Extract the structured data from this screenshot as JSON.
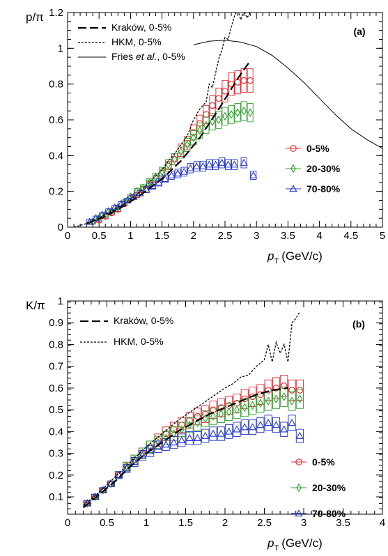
{
  "chart_data": [
    {
      "type": "scatter",
      "panel": "(a)",
      "ylabel": "p/π",
      "xlabel_main": "p",
      "xlabel_sub": "T",
      "xlabel_unit": "(GeV/c)",
      "xlim": [
        0,
        5
      ],
      "ylim": [
        0,
        1.2
      ],
      "xticks": [
        0,
        0.5,
        1,
        1.5,
        2,
        2.5,
        3,
        3.5,
        4,
        4.5,
        5
      ],
      "xtick_labels": [
        "0",
        "0.5",
        "1",
        "1.5",
        "2",
        "2.5",
        "3",
        "3.5",
        "4",
        "4.5",
        "5"
      ],
      "yticks": [
        0,
        0.2,
        0.4,
        0.6,
        0.8,
        1,
        1.2
      ],
      "ytick_labels": [
        "0",
        "0.2",
        "0.4",
        "0.6",
        "0.8",
        "1",
        "1.2"
      ],
      "model_legend": [
        {
          "name": "Kraków, 0-5%",
          "style": "longdash"
        },
        {
          "name": "HKM, 0-5%",
          "style": "dotted"
        },
        {
          "name_prefix": "Fries ",
          "name_italic": "et al.",
          "name_suffix": ", 0-5%",
          "style": "solid"
        }
      ],
      "models": [
        {
          "name": "Kraków, 0-5%",
          "style": "longdash",
          "x": [
            0.3,
            0.6,
            0.9,
            1.2,
            1.5,
            1.8,
            2.1,
            2.4,
            2.7,
            2.9
          ],
          "y": [
            0.02,
            0.06,
            0.12,
            0.19,
            0.27,
            0.37,
            0.5,
            0.66,
            0.83,
            0.93
          ]
        },
        {
          "name": "HKM, 0-5%",
          "style": "dotted",
          "x": [
            0.1,
            0.3,
            0.5,
            0.7,
            0.9,
            1.1,
            1.3,
            1.5,
            1.6,
            1.7,
            1.8,
            1.9,
            2.0,
            2.1,
            2.2,
            2.25,
            2.3,
            2.35,
            2.4,
            2.45,
            2.5,
            2.55,
            2.6,
            2.65,
            2.7,
            2.75,
            2.8,
            2.85,
            2.9
          ],
          "y": [
            0.0,
            0.02,
            0.05,
            0.09,
            0.13,
            0.18,
            0.25,
            0.32,
            0.37,
            0.41,
            0.46,
            0.51,
            0.6,
            0.66,
            0.7,
            0.8,
            0.78,
            0.86,
            0.94,
            0.99,
            1.06,
            1.05,
            1.12,
            1.18,
            1.22,
            1.16,
            1.21,
            1.17,
            1.2
          ]
        },
        {
          "name": "Fries et al., 0-5%",
          "style": "solid",
          "x": [
            2.0,
            2.25,
            2.5,
            2.75,
            3.0,
            3.25,
            3.5,
            3.75,
            4.0,
            4.25,
            4.5,
            4.75,
            5.0
          ],
          "y": [
            1.02,
            1.04,
            1.045,
            1.035,
            1.01,
            0.96,
            0.89,
            0.81,
            0.72,
            0.63,
            0.55,
            0.49,
            0.44
          ]
        }
      ],
      "series_legend": [
        "0-5%",
        "20-30%",
        "70-80%"
      ],
      "series": [
        {
          "name": "0-5%",
          "marker": "circle",
          "color": "#e8222a",
          "x": [
            0.4,
            0.5,
            0.6,
            0.7,
            0.8,
            0.9,
            1.0,
            1.1,
            1.2,
            1.3,
            1.4,
            1.5,
            1.6,
            1.7,
            1.8,
            1.9,
            2.0,
            2.1,
            2.2,
            2.3,
            2.4,
            2.5,
            2.6,
            2.7,
            2.8,
            2.9
          ],
          "y": [
            0.03,
            0.04,
            0.06,
            0.08,
            0.1,
            0.13,
            0.16,
            0.18,
            0.21,
            0.24,
            0.27,
            0.3,
            0.34,
            0.38,
            0.43,
            0.47,
            0.53,
            0.58,
            0.63,
            0.68,
            0.72,
            0.76,
            0.8,
            0.81,
            0.82,
            0.82
          ]
        },
        {
          "name": "20-30%",
          "marker": "diamond",
          "color": "#2ca02c",
          "x": [
            0.4,
            0.5,
            0.6,
            0.7,
            0.8,
            0.9,
            1.0,
            1.1,
            1.2,
            1.3,
            1.4,
            1.5,
            1.6,
            1.7,
            1.8,
            1.9,
            2.0,
            2.1,
            2.2,
            2.3,
            2.4,
            2.5,
            2.6,
            2.7,
            2.8,
            2.9
          ],
          "y": [
            0.03,
            0.05,
            0.07,
            0.09,
            0.11,
            0.14,
            0.17,
            0.2,
            0.22,
            0.25,
            0.28,
            0.31,
            0.35,
            0.38,
            0.42,
            0.46,
            0.5,
            0.54,
            0.57,
            0.59,
            0.6,
            0.62,
            0.63,
            0.64,
            0.65,
            0.64
          ]
        },
        {
          "name": "70-80%",
          "marker": "triangle",
          "color": "#2233cc",
          "x": [
            0.35,
            0.45,
            0.55,
            0.65,
            0.75,
            0.85,
            0.95,
            1.05,
            1.15,
            1.25,
            1.35,
            1.45,
            1.55,
            1.65,
            1.75,
            1.85,
            1.95,
            2.05,
            2.15,
            2.25,
            2.35,
            2.45,
            2.55,
            2.65,
            2.8,
            2.95
          ],
          "y": [
            0.03,
            0.05,
            0.07,
            0.09,
            0.11,
            0.13,
            0.15,
            0.17,
            0.19,
            0.21,
            0.23,
            0.25,
            0.27,
            0.29,
            0.3,
            0.31,
            0.33,
            0.34,
            0.34,
            0.35,
            0.35,
            0.36,
            0.35,
            0.35,
            0.36,
            0.29
          ]
        }
      ]
    },
    {
      "type": "scatter",
      "panel": "(b)",
      "ylabel": "K/π",
      "xlabel_main": "p",
      "xlabel_sub": "T",
      "xlabel_unit": "(GeV/c)",
      "xlim": [
        0,
        4
      ],
      "ylim": [
        0.02,
        1.0
      ],
      "xticks": [
        0,
        0.5,
        1,
        1.5,
        2,
        2.5,
        3,
        3.5,
        4
      ],
      "xtick_labels": [
        "0",
        "0.5",
        "1",
        "1.5",
        "2",
        "2.5",
        "3",
        "3.5",
        "4"
      ],
      "yticks": [
        0.1,
        0.2,
        0.3,
        0.4,
        0.5,
        0.6,
        0.7,
        0.8,
        0.9,
        1
      ],
      "ytick_labels": [
        "0.1",
        "0.2",
        "0.3",
        "0.4",
        "0.5",
        "0.6",
        "0.7",
        "0.8",
        "0.9",
        "1"
      ],
      "model_legend": [
        {
          "name": "Kraków, 0-5%",
          "style": "longdash"
        },
        {
          "name": "HKM, 0-5%",
          "style": "dotted"
        }
      ],
      "models": [
        {
          "name": "Kraków, 0-5%",
          "style": "longdash",
          "x": [
            0.2,
            0.4,
            0.6,
            0.8,
            1.0,
            1.2,
            1.4,
            1.6,
            1.8,
            2.0,
            2.2,
            2.4,
            2.6,
            2.8
          ],
          "y": [
            0.05,
            0.11,
            0.17,
            0.24,
            0.3,
            0.35,
            0.4,
            0.44,
            0.48,
            0.51,
            0.54,
            0.57,
            0.59,
            0.6
          ]
        },
        {
          "name": "HKM, 0-5%",
          "style": "dotted",
          "x": [
            0.2,
            0.4,
            0.6,
            0.8,
            1.0,
            1.2,
            1.4,
            1.6,
            1.8,
            2.0,
            2.1,
            2.2,
            2.3,
            2.4,
            2.5,
            2.55,
            2.6,
            2.65,
            2.7,
            2.75,
            2.8,
            2.85,
            2.9,
            2.95
          ],
          "y": [
            0.06,
            0.12,
            0.19,
            0.26,
            0.33,
            0.39,
            0.45,
            0.5,
            0.55,
            0.6,
            0.62,
            0.65,
            0.66,
            0.7,
            0.73,
            0.8,
            0.72,
            0.81,
            0.76,
            0.8,
            0.72,
            0.9,
            0.92,
            0.95
          ]
        }
      ],
      "series_legend": [
        "0-5%",
        "20-30%",
        "70-80%"
      ],
      "series": [
        {
          "name": "0-5%",
          "marker": "circle",
          "color": "#e8222a",
          "x": [
            0.25,
            0.35,
            0.45,
            0.55,
            0.65,
            0.75,
            0.85,
            0.95,
            1.05,
            1.15,
            1.25,
            1.35,
            1.45,
            1.55,
            1.65,
            1.75,
            1.85,
            1.95,
            2.05,
            2.15,
            2.25,
            2.35,
            2.45,
            2.55,
            2.65,
            2.75,
            2.85,
            2.95
          ],
          "y": [
            0.07,
            0.1,
            0.13,
            0.16,
            0.2,
            0.24,
            0.27,
            0.3,
            0.33,
            0.36,
            0.39,
            0.41,
            0.43,
            0.45,
            0.47,
            0.48,
            0.5,
            0.51,
            0.52,
            0.53,
            0.55,
            0.56,
            0.57,
            0.59,
            0.6,
            0.61,
            0.59,
            0.59
          ]
        },
        {
          "name": "20-30%",
          "marker": "diamond",
          "color": "#2ca02c",
          "x": [
            0.25,
            0.35,
            0.45,
            0.55,
            0.65,
            0.75,
            0.85,
            0.95,
            1.05,
            1.15,
            1.25,
            1.35,
            1.45,
            1.55,
            1.65,
            1.75,
            1.85,
            1.95,
            2.05,
            2.15,
            2.25,
            2.35,
            2.45,
            2.55,
            2.65,
            2.75,
            2.85,
            2.95
          ],
          "y": [
            0.07,
            0.1,
            0.13,
            0.16,
            0.2,
            0.24,
            0.27,
            0.3,
            0.33,
            0.35,
            0.37,
            0.39,
            0.41,
            0.43,
            0.44,
            0.46,
            0.47,
            0.48,
            0.49,
            0.5,
            0.51,
            0.52,
            0.53,
            0.54,
            0.55,
            0.56,
            0.54,
            0.55
          ]
        },
        {
          "name": "70-80%",
          "marker": "triangle",
          "color": "#2233cc",
          "x": [
            0.25,
            0.35,
            0.45,
            0.55,
            0.65,
            0.75,
            0.85,
            0.95,
            1.05,
            1.15,
            1.25,
            1.35,
            1.45,
            1.55,
            1.65,
            1.75,
            1.85,
            1.95,
            2.05,
            2.15,
            2.25,
            2.35,
            2.45,
            2.55,
            2.65,
            2.75,
            2.85,
            2.95
          ],
          "y": [
            0.07,
            0.1,
            0.13,
            0.16,
            0.2,
            0.23,
            0.26,
            0.29,
            0.31,
            0.33,
            0.34,
            0.35,
            0.36,
            0.37,
            0.37,
            0.38,
            0.39,
            0.39,
            0.4,
            0.41,
            0.42,
            0.42,
            0.43,
            0.44,
            0.43,
            0.41,
            0.44,
            0.38
          ]
        }
      ]
    }
  ]
}
